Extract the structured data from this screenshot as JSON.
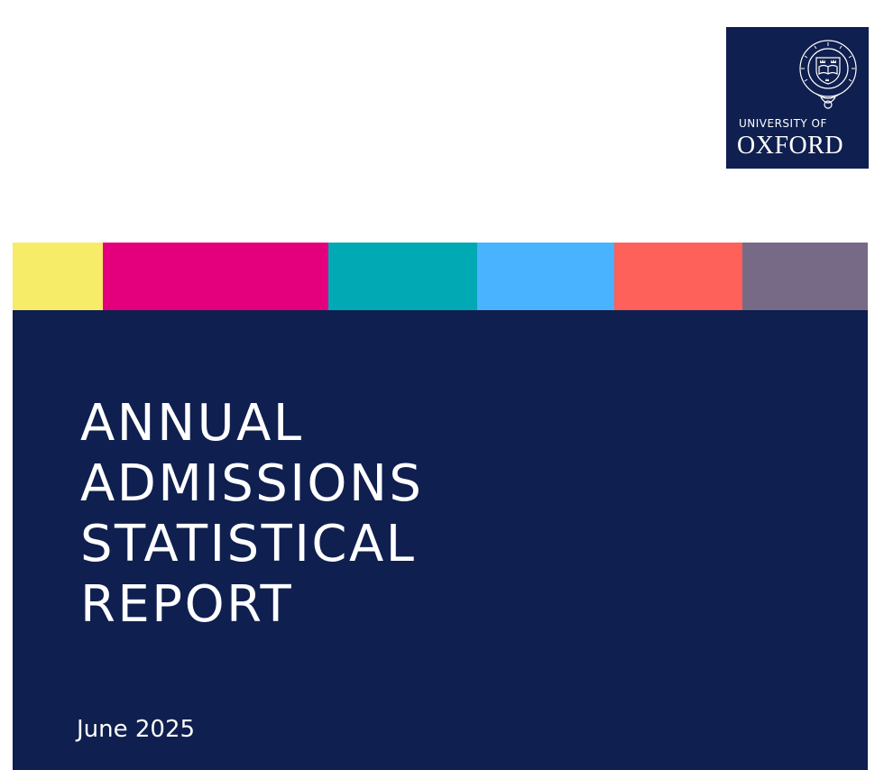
{
  "logo": {
    "line1": "UNIVERSITY OF",
    "line2": "OXFORD",
    "crest_icon": "oxford-crest-icon",
    "background": "#0f1f4f"
  },
  "strip_colors": [
    "#f6ec67",
    "#e4007c",
    "#00a9b4",
    "#4ab3ff",
    "#fe615a",
    "#776a87"
  ],
  "panel": {
    "background": "#0f1f4f",
    "title_lines": [
      "ANNUAL",
      "ADMISSIONS",
      "STATISTICAL",
      "REPORT"
    ],
    "date": "June 2025"
  }
}
